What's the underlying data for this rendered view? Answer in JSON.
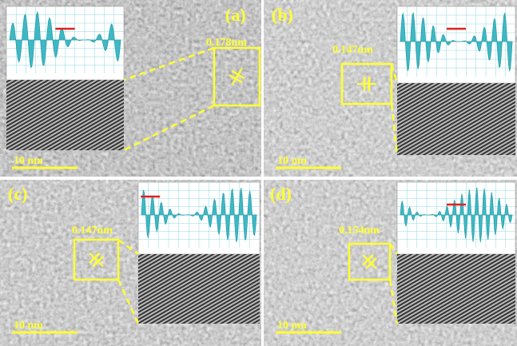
{
  "panels": [
    {
      "label": "(a)",
      "spacing": "0.178nm",
      "scale_bar": "10 nm"
    },
    {
      "label": "(b)",
      "spacing": "0.147nm",
      "scale_bar": "10 nm"
    },
    {
      "label": "(c)",
      "spacing": "0.147nm",
      "scale_bar": "10 nm"
    },
    {
      "label": "(d)",
      "spacing": "0.154nm",
      "scale_bar": "10 nm"
    }
  ]
}
